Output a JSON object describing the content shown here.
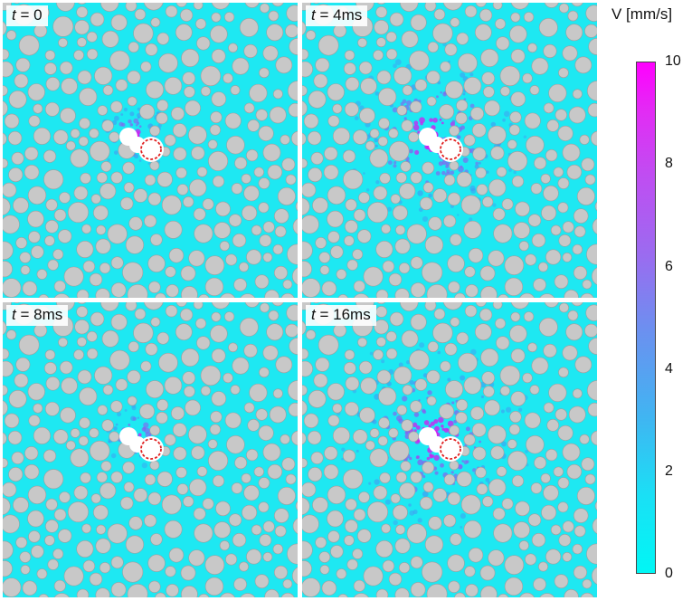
{
  "panels": [
    {
      "t_symbol": "t",
      "t_value": "= 0",
      "spread": 0.15
    },
    {
      "t_symbol": "t",
      "t_value": "= 4ms",
      "spread": 1.0
    },
    {
      "t_symbol": "t",
      "t_value": "= 8ms",
      "spread": 0.1
    },
    {
      "t_symbol": "t",
      "t_value": "= 16ms",
      "spread": 1.15
    }
  ],
  "colorbar": {
    "title": "V [mm/s]",
    "ticks": [
      "0",
      "2",
      "4",
      "6",
      "8",
      "10"
    ],
    "min": 0,
    "max": 10,
    "colors": {
      "low": "#00f7f5",
      "mid": "#6d8ff0",
      "high": "#ff00ff"
    }
  },
  "colors": {
    "fluid": "#1ee8f2",
    "grain": "#c8c8c8",
    "grain_edge": "#9e9e9e",
    "injection": "#e02020"
  }
}
